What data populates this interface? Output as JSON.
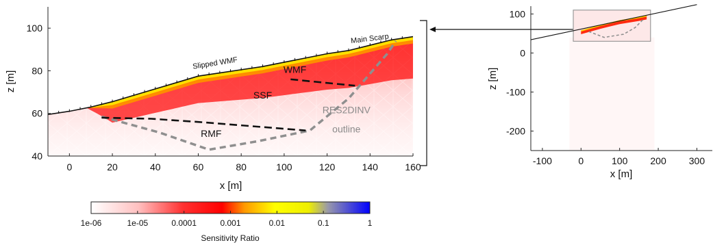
{
  "chart_data": [
    {
      "type": "area",
      "xlabel": "x [m]",
      "ylabel": "z [m]",
      "xlim": [
        -10,
        160
      ],
      "ylim": [
        40,
        110
      ],
      "xticks": [
        0,
        20,
        40,
        60,
        80,
        100,
        120,
        140,
        160
      ],
      "yticks": [
        40,
        60,
        80,
        100
      ],
      "surface": [
        [
          -10,
          59.5
        ],
        [
          0,
          61
        ],
        [
          10,
          63
        ],
        [
          20,
          65.5
        ],
        [
          30,
          68.5
        ],
        [
          40,
          71.5
        ],
        [
          50,
          74.5
        ],
        [
          60,
          77.5
        ],
        [
          70,
          79
        ],
        [
          80,
          80.5
        ],
        [
          90,
          82
        ],
        [
          100,
          84
        ],
        [
          110,
          86
        ],
        [
          120,
          88
        ],
        [
          130,
          89.5
        ],
        [
          140,
          92
        ],
        [
          150,
          94.5
        ],
        [
          160,
          96
        ]
      ],
      "sensitive_zone_start_x": 8,
      "res2dinv_outline": [
        [
          15,
          58.5
        ],
        [
          42,
          51
        ],
        [
          65,
          43
        ],
        [
          88,
          47
        ],
        [
          112,
          52
        ],
        [
          130,
          67
        ],
        [
          148,
          88
        ],
        [
          152,
          94
        ]
      ],
      "ssf_boundary": [
        [
          15,
          58
        ],
        [
          38,
          57.5
        ],
        [
          60,
          56
        ],
        [
          85,
          54
        ],
        [
          110,
          52
        ]
      ],
      "wmf_boundary": [
        [
          103,
          76
        ],
        [
          133,
          73
        ]
      ],
      "annotations": [
        {
          "text": "Slipped WMF",
          "x": 68,
          "y": 82.5
        },
        {
          "text": "Main Scarp",
          "x": 140,
          "y": 94
        },
        {
          "text": "WMF",
          "x": 105,
          "y": 79
        },
        {
          "text": "SSF",
          "x": 90,
          "y": 67
        },
        {
          "text": "RES2DINV",
          "x": 129,
          "y": 60
        },
        {
          "text": "outline",
          "x": 129,
          "y": 51
        },
        {
          "text": "RMF",
          "x": 66,
          "y": 49
        }
      ]
    },
    {
      "type": "line",
      "xlabel": "x [m]",
      "ylabel": "z [m]",
      "xlim": [
        -130,
        340
      ],
      "ylim": [
        -250,
        120
      ],
      "xticks": [
        -100,
        0,
        100,
        200,
        300
      ],
      "yticks": [
        -200,
        -100,
        0,
        100
      ],
      "array_line": [
        [
          -130,
          34
        ],
        [
          300,
          124
        ]
      ],
      "zoom_box": {
        "x": [
          -20,
          180
        ],
        "z": [
          30,
          110
        ]
      },
      "surface": [
        [
          0,
          58
        ],
        [
          50,
          72
        ],
        [
          100,
          84
        ],
        [
          150,
          92
        ],
        [
          170,
          96
        ]
      ],
      "outline": [
        [
          20,
          55
        ],
        [
          60,
          40
        ],
        [
          110,
          48
        ],
        [
          140,
          65
        ],
        [
          160,
          85
        ]
      ]
    }
  ],
  "colorbar": {
    "label": "Sensitivity Ratio",
    "ticks": [
      "1e-06",
      "1e-05",
      "0.0001",
      "0.001",
      "0.01",
      "0.1",
      "1"
    ],
    "colors": [
      "#ffffff",
      "#ff0000",
      "#ffee00",
      "#0000ff"
    ]
  }
}
